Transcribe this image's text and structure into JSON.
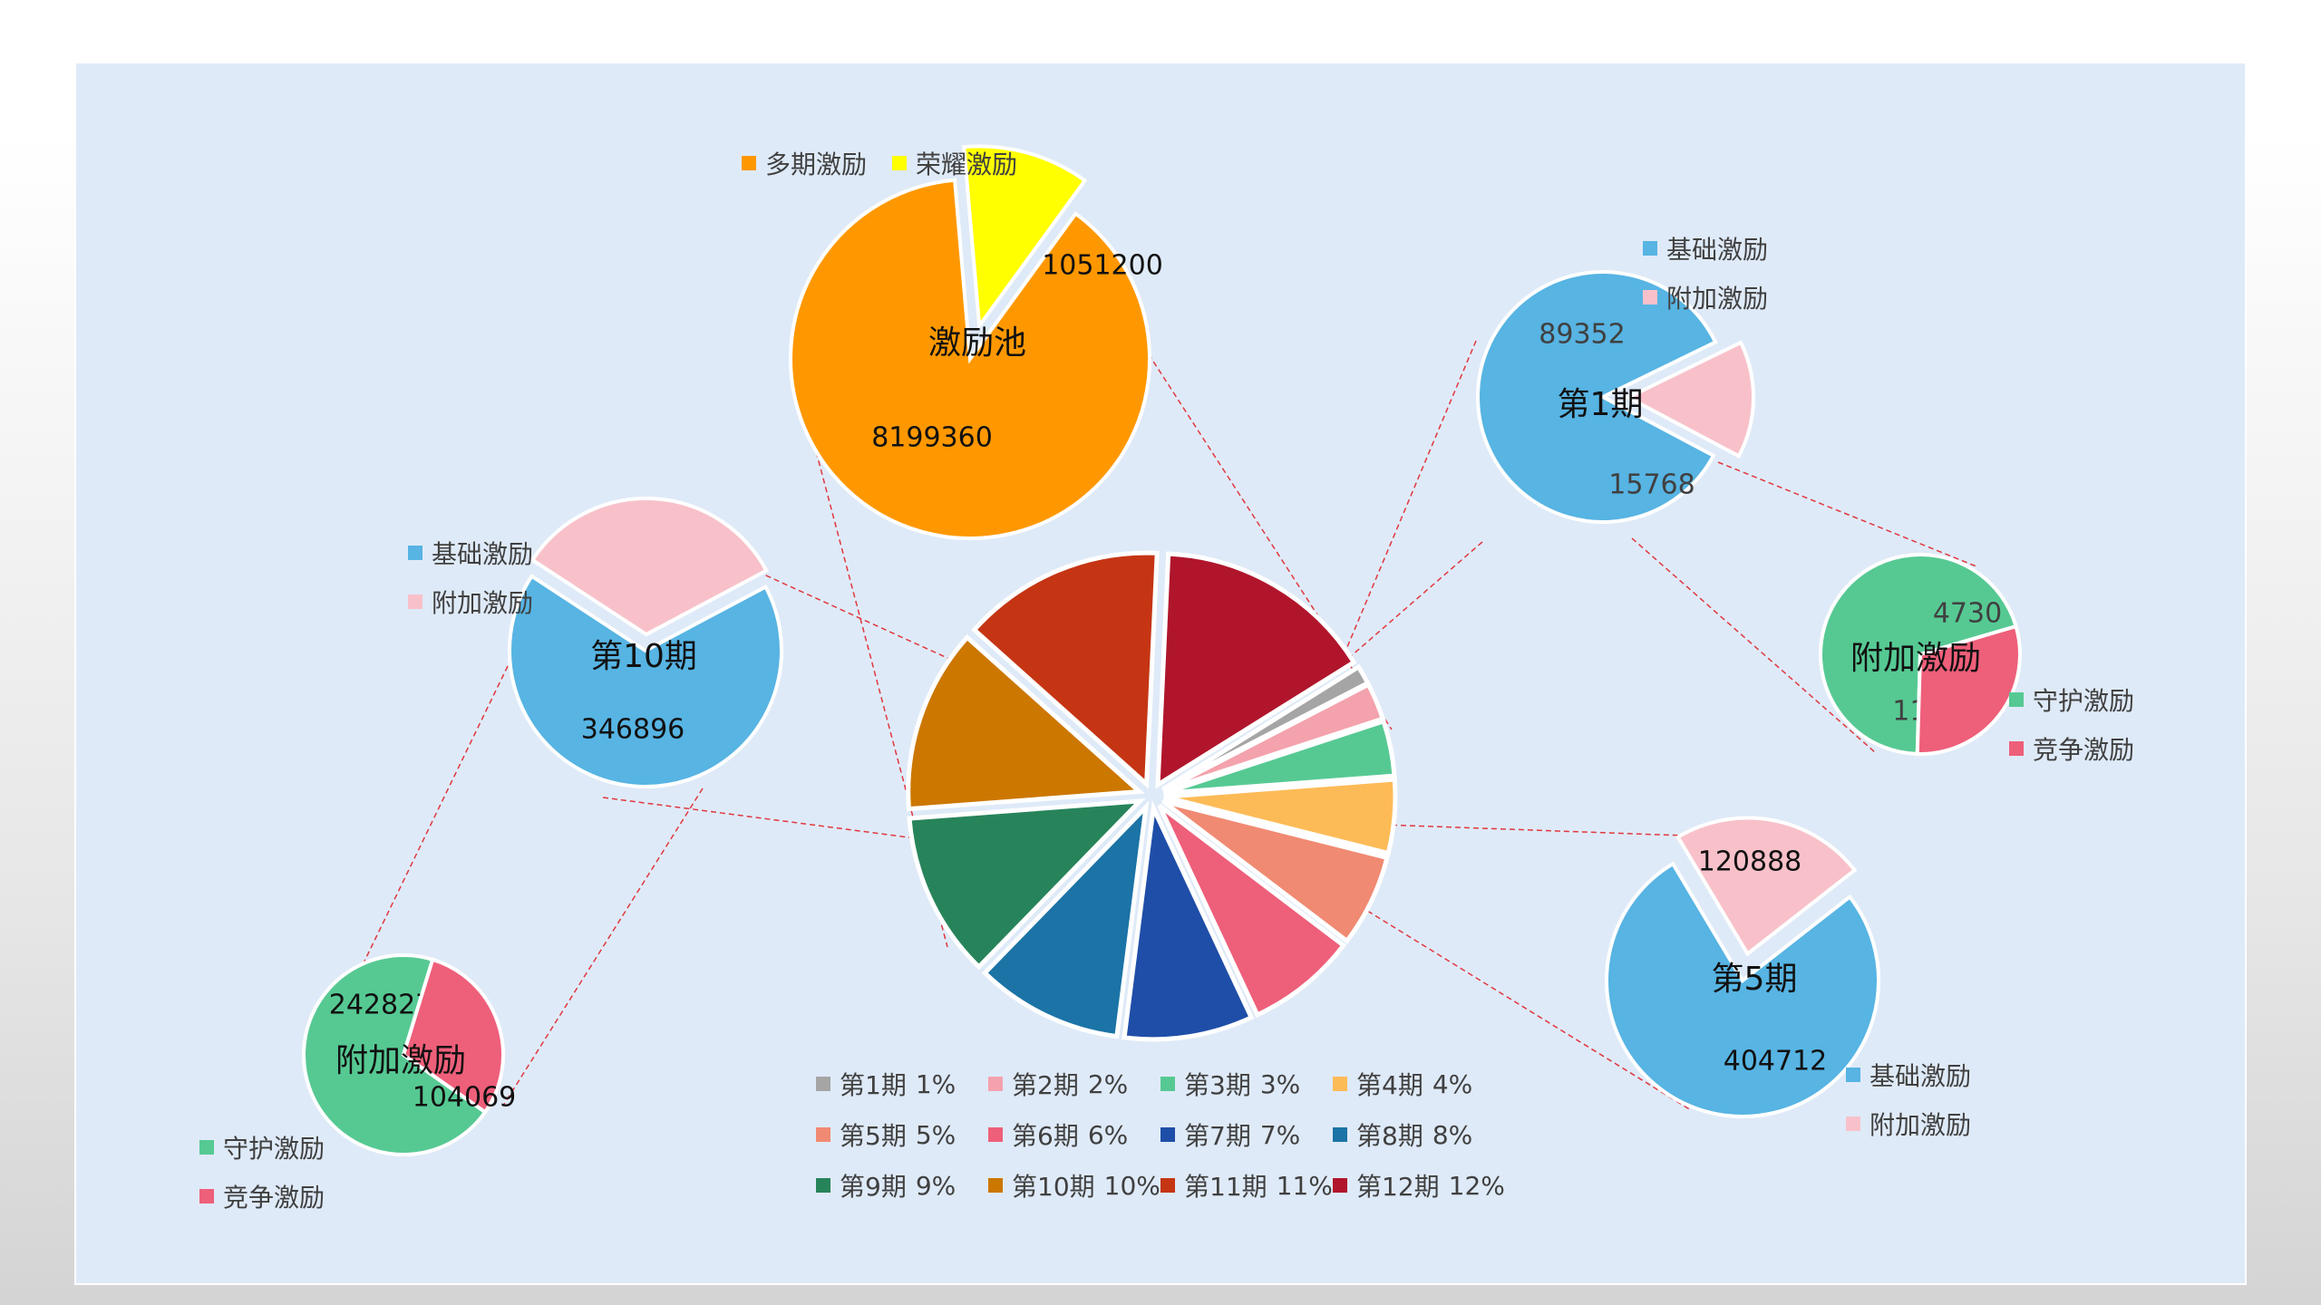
{
  "chart_data": {
    "type": "pie",
    "main": {
      "slices": [
        {
          "label": "第1期",
          "pct": "1%",
          "value": 1,
          "color": "#a5a5a5"
        },
        {
          "label": "第2期",
          "pct": "2%",
          "value": 2,
          "color": "#f4a2ad"
        },
        {
          "label": "第3期",
          "pct": "3%",
          "value": 3,
          "color": "#56c993"
        },
        {
          "label": "第4期",
          "pct": "4%",
          "value": 4,
          "color": "#fdbb57"
        },
        {
          "label": "第5期",
          "pct": "5%",
          "value": 5,
          "color": "#f08a72"
        },
        {
          "label": "第6期",
          "pct": "6%",
          "value": 6,
          "color": "#ee5f7a"
        },
        {
          "label": "第7期",
          "pct": "7%",
          "value": 7,
          "color": "#1f4ea8"
        },
        {
          "label": "第8期",
          "pct": "8%",
          "value": 8,
          "color": "#1b73a6"
        },
        {
          "label": "第9期",
          "pct": "9%",
          "value": 9,
          "color": "#27845a"
        },
        {
          "label": "第10期",
          "pct": "10%",
          "value": 10,
          "color": "#cc7700"
        },
        {
          "label": "第11期",
          "pct": "11%",
          "value": 11,
          "color": "#c53514"
        },
        {
          "label": "第12期",
          "pct": "12%",
          "value": 12,
          "color": "#b0152c"
        }
      ]
    },
    "pool": {
      "title": "激励池",
      "slices": [
        {
          "label": "多期激励",
          "value": 8199360,
          "color": "#ff9800"
        },
        {
          "label": "荣耀激励",
          "value": 1051200,
          "color": "#ffff00"
        }
      ]
    },
    "period1": {
      "title": "第1期",
      "slices": [
        {
          "label": "基础激励",
          "value": 89352,
          "color": "#57b4e3"
        },
        {
          "label": "附加激励",
          "value": 15768,
          "color": "#f8c1ca"
        }
      ]
    },
    "period1_extra": {
      "title": "附加激励",
      "slices": [
        {
          "label": "守护激励",
          "value": 11038,
          "color": "#56c993"
        },
        {
          "label": "竞争激励",
          "value": 4730,
          "color": "#ee5f7a"
        }
      ]
    },
    "period5": {
      "title": "第5期",
      "slices": [
        {
          "label": "基础激励",
          "value": 404712,
          "color": "#57b4e3"
        },
        {
          "label": "附加激励",
          "value": 120888,
          "color": "#f8c1ca"
        }
      ]
    },
    "period10": {
      "title": "第10期",
      "slices": [
        {
          "label": "基础激励",
          "value": 704304,
          "color": "#57b4e3"
        },
        {
          "label": "附加激励",
          "value": 346896,
          "color": "#f8c1ca"
        }
      ]
    },
    "period10_extra": {
      "title": "附加激励",
      "slices": [
        {
          "label": "守护激励",
          "value": 242827,
          "color": "#56c993"
        },
        {
          "label": "竞争激励",
          "value": 104069,
          "color": "#ee5f7a"
        }
      ]
    }
  },
  "colors": {
    "panel_bg": "#dfeaf8",
    "connector": "#e0383e",
    "slice_border": "#ffffff"
  }
}
